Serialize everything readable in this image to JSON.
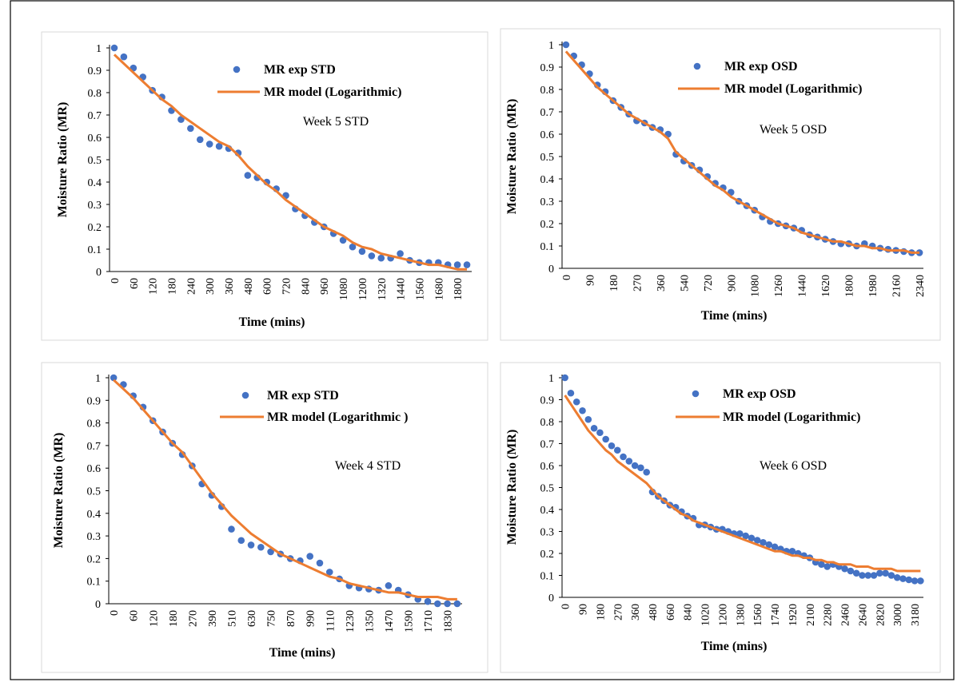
{
  "chart_data": [
    {
      "type": "line",
      "annotation": "Week 5 STD",
      "xlabel": "Time (mins)",
      "ylabel": "Moisture Ratio (MR)",
      "ylim": [
        0,
        1
      ],
      "yticks": [
        0,
        0.1,
        0.2,
        0.3,
        0.4,
        0.5,
        0.6,
        0.7,
        0.8,
        0.9,
        1
      ],
      "grid": false,
      "categories": [
        "0",
        null,
        "60",
        null,
        "120",
        null,
        "180",
        null,
        "240",
        null,
        "300",
        null,
        "360",
        null,
        "480",
        null,
        "600",
        null,
        "720",
        null,
        "840",
        null,
        "960",
        null,
        "1080",
        null,
        "1200",
        null,
        "1320",
        null,
        "1440",
        null,
        "1560",
        null,
        "1680",
        null,
        "1800",
        null
      ],
      "series": [
        {
          "name": "MR exp STD",
          "style": "markers",
          "color": "#4472c4",
          "values": [
            1.0,
            0.96,
            0.91,
            0.87,
            0.81,
            0.78,
            0.72,
            0.68,
            0.64,
            0.59,
            0.57,
            0.56,
            0.55,
            0.53,
            0.43,
            0.42,
            0.4,
            0.37,
            0.34,
            0.28,
            0.25,
            0.22,
            0.2,
            0.17,
            0.14,
            0.11,
            0.09,
            0.07,
            0.06,
            0.06,
            0.08,
            0.05,
            0.04,
            0.04,
            0.04,
            0.03,
            0.03,
            0.03
          ]
        },
        {
          "name": "MR model (Logarithmic)",
          "style": "line",
          "color": "#ed7d31",
          "values": [
            0.97,
            0.93,
            0.89,
            0.85,
            0.81,
            0.77,
            0.74,
            0.7,
            0.67,
            0.64,
            0.61,
            0.58,
            0.56,
            0.52,
            0.47,
            0.43,
            0.39,
            0.36,
            0.32,
            0.29,
            0.26,
            0.23,
            0.2,
            0.18,
            0.16,
            0.13,
            0.11,
            0.1,
            0.08,
            0.07,
            0.06,
            0.05,
            0.04,
            0.03,
            0.03,
            0.02,
            0.01,
            0.01
          ]
        }
      ]
    },
    {
      "type": "line",
      "annotation": "Week 5 OSD",
      "xlabel": "Time (mins)",
      "ylabel": "Moisture Ratio (MR)",
      "ylim": [
        0,
        1
      ],
      "yticks": [
        0,
        0.1,
        0.2,
        0.3,
        0.4,
        0.5,
        0.6,
        0.7,
        0.8,
        0.9,
        1
      ],
      "grid": false,
      "categories": [
        "0",
        null,
        null,
        "90",
        null,
        null,
        "180",
        null,
        null,
        "270",
        null,
        null,
        "360",
        null,
        null,
        "540",
        null,
        null,
        "720",
        null,
        null,
        "900",
        null,
        null,
        "1080",
        null,
        null,
        "1260",
        null,
        null,
        "1440",
        null,
        null,
        "1620",
        null,
        null,
        "1800",
        null,
        null,
        "1980",
        null,
        null,
        "2160",
        null,
        null,
        "2340"
      ],
      "series": [
        {
          "name": "MR exp OSD",
          "style": "markers",
          "color": "#4472c4",
          "values": [
            1.0,
            0.95,
            0.91,
            0.87,
            0.82,
            0.79,
            0.75,
            0.72,
            0.69,
            0.66,
            0.65,
            0.63,
            0.62,
            0.6,
            0.51,
            0.48,
            0.46,
            0.44,
            0.41,
            0.38,
            0.36,
            0.34,
            0.3,
            0.28,
            0.26,
            0.23,
            0.21,
            0.2,
            0.19,
            0.18,
            0.17,
            0.15,
            0.14,
            0.13,
            0.12,
            0.11,
            0.11,
            0.1,
            0.11,
            0.1,
            0.09,
            0.085,
            0.08,
            0.075,
            0.07,
            0.07
          ]
        },
        {
          "name": "MR model (Logarithmic)",
          "style": "line",
          "color": "#ed7d31",
          "values": [
            0.97,
            0.93,
            0.89,
            0.85,
            0.81,
            0.78,
            0.75,
            0.72,
            0.69,
            0.67,
            0.65,
            0.63,
            0.61,
            0.58,
            0.52,
            0.49,
            0.46,
            0.43,
            0.4,
            0.37,
            0.35,
            0.32,
            0.3,
            0.28,
            0.26,
            0.24,
            0.22,
            0.2,
            0.19,
            0.18,
            0.16,
            0.15,
            0.14,
            0.13,
            0.12,
            0.12,
            0.11,
            0.1,
            0.1,
            0.09,
            0.09,
            0.08,
            0.08,
            0.08,
            0.07,
            0.07
          ]
        }
      ]
    },
    {
      "type": "line",
      "annotation": "Week 4 STD",
      "xlabel": "Time (mins)",
      "ylabel": "Moisture Ratio (MR)",
      "ylim": [
        0,
        1
      ],
      "yticks": [
        0,
        0.1,
        0.2,
        0.3,
        0.4,
        0.5,
        0.6,
        0.7,
        0.8,
        0.9,
        1
      ],
      "grid": false,
      "categories": [
        "0",
        null,
        "60",
        null,
        "120",
        null,
        "180",
        null,
        "270",
        null,
        "390",
        null,
        "510",
        null,
        "630",
        null,
        "750",
        null,
        "870",
        null,
        "990",
        null,
        "1110",
        null,
        "1230",
        null,
        "1350",
        null,
        "1470",
        null,
        "1590",
        null,
        "1710",
        null,
        "1830",
        null
      ],
      "series": [
        {
          "name": "MR exp STD",
          "style": "markers",
          "color": "#4472c4",
          "values": [
            1.0,
            0.97,
            0.92,
            0.87,
            0.81,
            0.76,
            0.71,
            0.66,
            0.61,
            0.53,
            0.48,
            0.43,
            0.33,
            0.28,
            0.26,
            0.25,
            0.23,
            0.22,
            0.2,
            0.19,
            0.21,
            0.18,
            0.14,
            0.11,
            0.08,
            0.07,
            0.065,
            0.06,
            0.08,
            0.06,
            0.04,
            0.02,
            0.01,
            0,
            0,
            0
          ]
        },
        {
          "name": "MR model (Logarithmic )",
          "style": "line",
          "color": "#ed7d31",
          "values": [
            0.99,
            0.95,
            0.91,
            0.86,
            0.81,
            0.76,
            0.71,
            0.67,
            0.61,
            0.55,
            0.49,
            0.44,
            0.39,
            0.35,
            0.31,
            0.28,
            0.25,
            0.22,
            0.2,
            0.18,
            0.16,
            0.14,
            0.12,
            0.11,
            0.09,
            0.08,
            0.07,
            0.06,
            0.05,
            0.05,
            0.04,
            0.03,
            0.03,
            0.03,
            0.02,
            0.02
          ]
        }
      ]
    },
    {
      "type": "line",
      "annotation": "Week 6 OSD",
      "xlabel": "Time (mins)",
      "ylabel": "Moisture Ratio (MR)",
      "ylim": [
        0,
        1
      ],
      "yticks": [
        0,
        0.1,
        0.2,
        0.3,
        0.4,
        0.5,
        0.6,
        0.7,
        0.8,
        0.9,
        1
      ],
      "grid": false,
      "categories": [
        "0",
        null,
        null,
        "90",
        null,
        null,
        "180",
        null,
        null,
        "270",
        null,
        null,
        "360",
        null,
        null,
        "480",
        null,
        null,
        "660",
        null,
        null,
        "840",
        null,
        null,
        "1020",
        null,
        null,
        "1200",
        null,
        null,
        "1380",
        null,
        null,
        "1560",
        null,
        null,
        "1740",
        null,
        null,
        "1920",
        null,
        null,
        "2100",
        null,
        null,
        "2280",
        null,
        null,
        "2460",
        null,
        null,
        "2640",
        null,
        null,
        "2820",
        null,
        null,
        "3000",
        null,
        null,
        "3180",
        null
      ],
      "series": [
        {
          "name": "MR exp OSD",
          "style": "markers",
          "color": "#4472c4",
          "values": [
            1.0,
            0.93,
            0.89,
            0.85,
            0.81,
            0.77,
            0.75,
            0.72,
            0.69,
            0.67,
            0.64,
            0.62,
            0.6,
            0.59,
            0.57,
            0.48,
            0.46,
            0.44,
            0.42,
            0.41,
            0.39,
            0.37,
            0.36,
            0.33,
            0.33,
            0.32,
            0.31,
            0.31,
            0.3,
            0.29,
            0.29,
            0.28,
            0.27,
            0.26,
            0.25,
            0.24,
            0.23,
            0.22,
            0.21,
            0.21,
            0.2,
            0.19,
            0.18,
            0.16,
            0.15,
            0.14,
            0.15,
            0.14,
            0.13,
            0.12,
            0.11,
            0.1,
            0.1,
            0.1,
            0.11,
            0.11,
            0.1,
            0.09,
            0.085,
            0.08,
            0.075,
            0.075
          ]
        },
        {
          "name": "MR model (Logarithmic)",
          "style": "line",
          "color": "#ed7d31",
          "values": [
            0.92,
            0.88,
            0.84,
            0.8,
            0.76,
            0.73,
            0.7,
            0.67,
            0.65,
            0.62,
            0.6,
            0.58,
            0.56,
            0.54,
            0.52,
            0.49,
            0.46,
            0.44,
            0.42,
            0.4,
            0.38,
            0.37,
            0.35,
            0.34,
            0.33,
            0.32,
            0.31,
            0.3,
            0.29,
            0.28,
            0.27,
            0.26,
            0.25,
            0.24,
            0.23,
            0.22,
            0.21,
            0.21,
            0.2,
            0.19,
            0.19,
            0.18,
            0.18,
            0.17,
            0.17,
            0.16,
            0.16,
            0.15,
            0.15,
            0.15,
            0.14,
            0.14,
            0.14,
            0.13,
            0.13,
            0.13,
            0.13,
            0.12,
            0.12,
            0.12,
            0.12,
            0.12
          ]
        }
      ]
    }
  ]
}
